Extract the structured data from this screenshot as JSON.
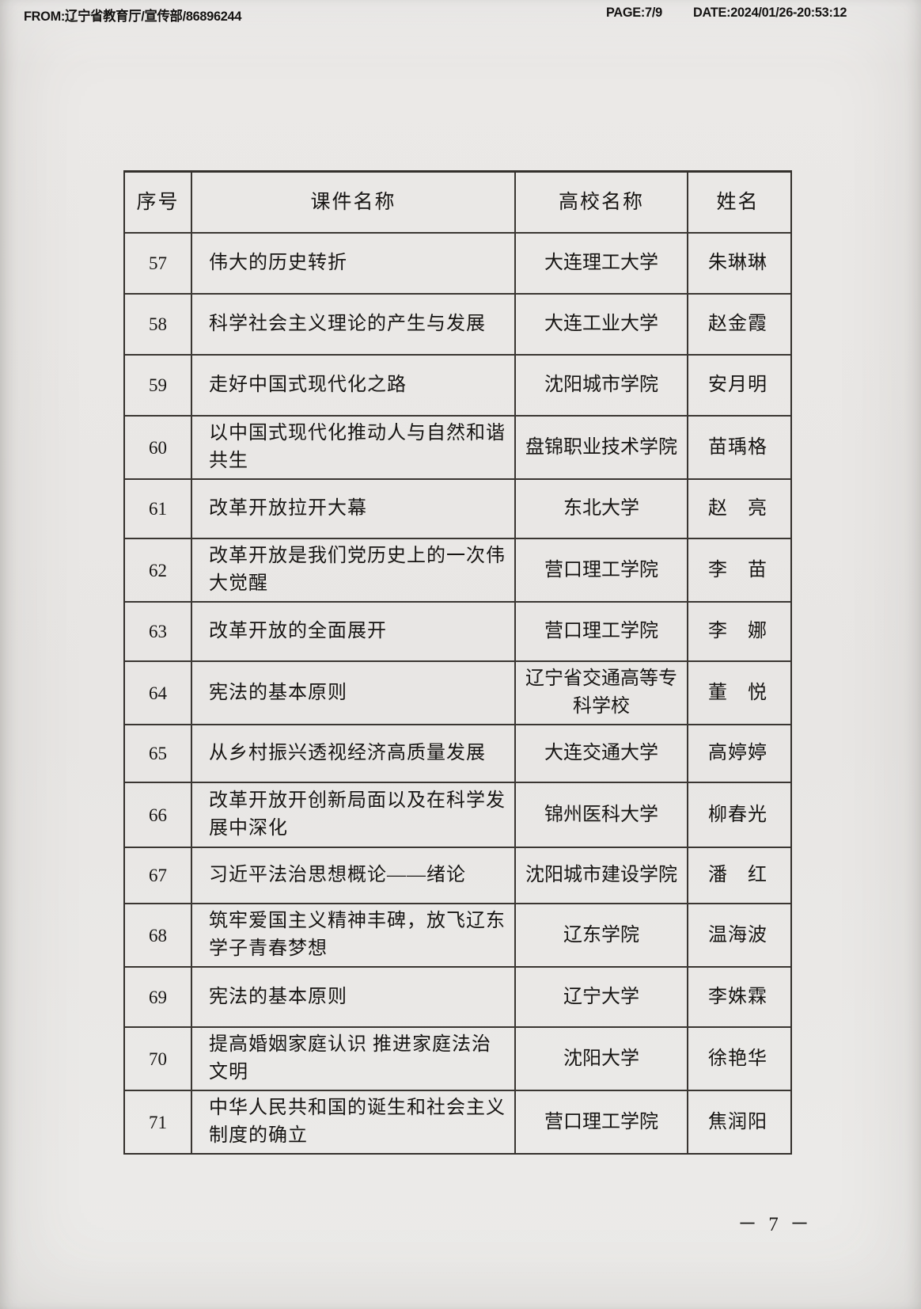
{
  "fax_header": {
    "from": "FROM:辽宁省教育厅/宣传部/86896244",
    "page": "PAGE:7/9",
    "date": "DATE:2024/01/26-20:53:12"
  },
  "table": {
    "columns": [
      "序号",
      "课件名称",
      "高校名称",
      "姓名"
    ],
    "rows": [
      {
        "no": "57",
        "course": "伟大的历史转折",
        "school": "大连理工大学",
        "name": "朱琳琳"
      },
      {
        "no": "58",
        "course": "科学社会主义理论的产生与发展",
        "school": "大连工业大学",
        "name": "赵金霞"
      },
      {
        "no": "59",
        "course": "走好中国式现代化之路",
        "school": "沈阳城市学院",
        "name": "安月明"
      },
      {
        "no": "60",
        "course": "以中国式现代化推动人与自然和谐共生",
        "school": "盘锦职业技术学院",
        "name": "苗瑀格"
      },
      {
        "no": "61",
        "course": "改革开放拉开大幕",
        "school": "东北大学",
        "name": "赵　亮"
      },
      {
        "no": "62",
        "course": "改革开放是我们党历史上的一次伟大觉醒",
        "school": "营口理工学院",
        "name": "李　苗"
      },
      {
        "no": "63",
        "course": "改革开放的全面展开",
        "school": "营口理工学院",
        "name": "李　娜"
      },
      {
        "no": "64",
        "course": "宪法的基本原则",
        "school": "辽宁省交通高等专科学校",
        "name": "董　悦"
      },
      {
        "no": "65",
        "course": "从乡村振兴透视经济高质量发展",
        "school": "大连交通大学",
        "name": "高婷婷"
      },
      {
        "no": "66",
        "course": "改革开放开创新局面以及在科学发展中深化",
        "school": "锦州医科大学",
        "name": "柳春光"
      },
      {
        "no": "67",
        "course": "习近平法治思想概论——绪论",
        "school": "沈阳城市建设学院",
        "name": "潘　红"
      },
      {
        "no": "68",
        "course": "筑牢爱国主义精神丰碑，放飞辽东学子青春梦想",
        "school": "辽东学院",
        "name": "温海波"
      },
      {
        "no": "69",
        "course": "宪法的基本原则",
        "school": "辽宁大学",
        "name": "李姝霖"
      },
      {
        "no": "70",
        "course": "提高婚姻家庭认识 推进家庭法治文明",
        "school": "沈阳大学",
        "name": "徐艳华"
      },
      {
        "no": "71",
        "course": "中华人民共和国的诞生和社会主义制度的确立",
        "school": "营口理工学院",
        "name": "焦润阳"
      }
    ]
  },
  "footer": {
    "page_number": "－ 7 －"
  }
}
